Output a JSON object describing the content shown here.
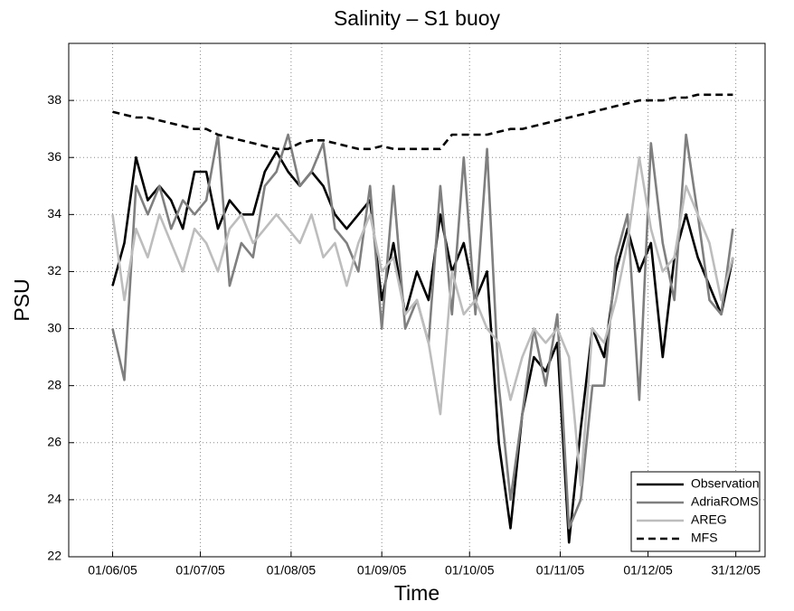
{
  "chart_data": {
    "type": "line",
    "title": "Salinity – S1 buoy",
    "xlabel": "Time",
    "ylabel": "PSU",
    "x": [
      "2005-06-01",
      "2005-06-05",
      "2005-06-09",
      "2005-06-13",
      "2005-06-17",
      "2005-06-21",
      "2005-06-25",
      "2005-06-29",
      "2005-07-03",
      "2005-07-07",
      "2005-07-11",
      "2005-07-15",
      "2005-07-19",
      "2005-07-23",
      "2005-07-27",
      "2005-07-31",
      "2005-08-04",
      "2005-08-08",
      "2005-08-12",
      "2005-08-16",
      "2005-08-20",
      "2005-08-24",
      "2005-08-28",
      "2005-09-01",
      "2005-09-05",
      "2005-09-09",
      "2005-09-13",
      "2005-09-17",
      "2005-09-21",
      "2005-09-25",
      "2005-09-29",
      "2005-10-03",
      "2005-10-07",
      "2005-10-11",
      "2005-10-15",
      "2005-10-19",
      "2005-10-23",
      "2005-10-27",
      "2005-10-31",
      "2005-11-04",
      "2005-11-08",
      "2005-11-12",
      "2005-11-16",
      "2005-11-20",
      "2005-11-24",
      "2005-11-28",
      "2005-12-02",
      "2005-12-06",
      "2005-12-10",
      "2005-12-14",
      "2005-12-18",
      "2005-12-22",
      "2005-12-26",
      "2005-12-30"
    ],
    "series": [
      {
        "name": "Observation",
        "color": "#000000",
        "dash": "solid",
        "width": 2.6,
        "values": [
          31.5,
          33,
          36,
          34.5,
          35,
          34.5,
          33.5,
          35.5,
          35.5,
          33.5,
          34.5,
          34,
          34,
          35.5,
          36.2,
          35.5,
          35,
          35.5,
          35,
          34,
          33.5,
          34,
          34.5,
          31,
          33,
          30.5,
          32,
          31,
          34,
          32,
          33,
          31,
          32,
          26,
          23,
          27,
          29,
          28.5,
          29.5,
          22.5,
          26.5,
          30,
          29,
          32,
          33.5,
          32,
          33,
          29,
          32.5,
          34,
          32.5,
          31.5,
          30.5,
          32.5
        ]
      },
      {
        "name": "AdriaROMS",
        "color": "#7f7f7f",
        "dash": "solid",
        "width": 2.6,
        "values": [
          30,
          28.2,
          35,
          34,
          35,
          33.5,
          34.5,
          34,
          34.5,
          36.8,
          31.5,
          33,
          32.5,
          35,
          35.5,
          36.8,
          35,
          35.5,
          36.5,
          33.5,
          33,
          32,
          35,
          30,
          35,
          30,
          31,
          29.5,
          35,
          30.5,
          36,
          30.5,
          36.3,
          28,
          24,
          27,
          30,
          28,
          30.5,
          23,
          24,
          28,
          28,
          32.5,
          34,
          27.5,
          36.5,
          33,
          31,
          36.8,
          34,
          31,
          30.5,
          33.5
        ]
      },
      {
        "name": "AREG",
        "color": "#bdbdbd",
        "dash": "solid",
        "width": 2.6,
        "values": [
          34,
          31,
          33.5,
          32.5,
          34,
          33,
          32,
          33.5,
          33,
          32,
          33.5,
          34,
          33,
          33.5,
          34,
          33.5,
          33,
          34,
          32.5,
          33,
          31.5,
          33,
          34,
          32,
          32.5,
          30.5,
          31,
          29.5,
          27,
          32,
          30.5,
          31,
          30,
          29.5,
          27.5,
          29,
          30,
          29.5,
          30,
          29,
          24.5,
          30,
          29.5,
          31,
          33,
          36,
          33.5,
          32,
          32.5,
          35,
          34,
          33,
          31,
          32.5
        ]
      },
      {
        "name": "MFS",
        "color": "#000000",
        "dash": "dashed",
        "width": 2.6,
        "values": [
          37.6,
          37.5,
          37.4,
          37.4,
          37.3,
          37.2,
          37.1,
          37.0,
          37.0,
          36.8,
          36.7,
          36.6,
          36.5,
          36.4,
          36.3,
          36.3,
          36.5,
          36.6,
          36.6,
          36.5,
          36.4,
          36.3,
          36.3,
          36.4,
          36.3,
          36.3,
          36.3,
          36.3,
          36.3,
          36.8,
          36.8,
          36.8,
          36.8,
          36.9,
          37.0,
          37.0,
          37.1,
          37.2,
          37.3,
          37.4,
          37.5,
          37.6,
          37.7,
          37.8,
          37.9,
          38.0,
          38.0,
          38.0,
          38.1,
          38.1,
          38.2,
          38.2,
          38.2,
          38.2
        ]
      }
    ],
    "xlim": [
      "2005-05-17",
      "2006-01-10"
    ],
    "xticks": [
      {
        "value": "2005-06-01",
        "label": "01/06/05"
      },
      {
        "value": "2005-07-01",
        "label": "01/07/05"
      },
      {
        "value": "2005-08-01",
        "label": "01/08/05"
      },
      {
        "value": "2005-09-01",
        "label": "01/09/05"
      },
      {
        "value": "2005-10-01",
        "label": "01/10/05"
      },
      {
        "value": "2005-11-01",
        "label": "01/11/05"
      },
      {
        "value": "2005-12-01",
        "label": "01/12/05"
      },
      {
        "value": "2005-12-31",
        "label": "31/12/05"
      }
    ],
    "ylim": [
      22,
      40
    ],
    "yticks": [
      22,
      24,
      26,
      28,
      30,
      32,
      34,
      36,
      38
    ],
    "grid": true,
    "legend": "lower right"
  }
}
